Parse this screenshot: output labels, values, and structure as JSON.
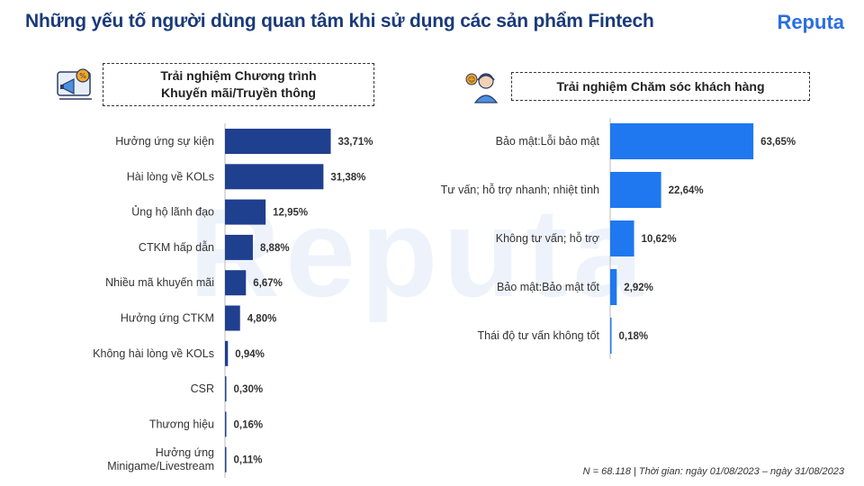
{
  "title": "Những yếu tố người dùng quan tâm khi sử dụng các sản phẩm Fintech",
  "brand": "Reputa",
  "watermark": "Reputa",
  "footer": "N = 68.118 | Thời gian: ngày 01/08/2023 – ngày 31/08/2023",
  "colors": {
    "left_bar": "#1f3f8f",
    "right_bar": "#1f78f0",
    "title": "#1a3a7a",
    "brand": "#2b6fe0"
  },
  "icons": {
    "left": "promotion-megaphone-icon",
    "right": "customer-support-agent-icon",
    "brand": "reputa-logo-icon"
  },
  "chart_data": [
    {
      "type": "bar",
      "orientation": "horizontal",
      "title_lines": [
        "Trải nghiệm Chương trình",
        "Khuyến mãi/Truyền thông"
      ],
      "categories": [
        [
          "Hưởng ứng sự kiện"
        ],
        [
          "Hài lòng về KOLs"
        ],
        [
          "Ủng hộ lãnh đạo"
        ],
        [
          "CTKM hấp dẫn"
        ],
        [
          "Nhiều mã khuyến mãi"
        ],
        [
          "Hưởng ứng CTKM"
        ],
        [
          "Không hài lòng về KOLs"
        ],
        [
          "CSR"
        ],
        [
          "Thương hiệu"
        ],
        [
          "Hưởng ứng",
          "Minigame/Livestream"
        ]
      ],
      "values": [
        33.71,
        31.38,
        12.95,
        8.88,
        6.67,
        4.8,
        0.94,
        0.3,
        0.16,
        0.11
      ],
      "value_labels": [
        "33,71%",
        "31,38%",
        "12,95%",
        "8,88%",
        "6,67%",
        "4,80%",
        "0,94%",
        "0,30%",
        "0,16%",
        "0,11%"
      ],
      "xlim": [
        0,
        35
      ]
    },
    {
      "type": "bar",
      "orientation": "horizontal",
      "title_lines": [
        "Trải nghiệm Chăm sóc khách hàng"
      ],
      "categories": [
        [
          "Bảo mật:Lỗi bảo mật"
        ],
        [
          "Tư vấn; hỗ trợ nhanh; nhiệt tình"
        ],
        [
          "Không tư vấn; hỗ trợ"
        ],
        [
          "Bảo mật:Bảo mật tốt"
        ],
        [
          "Thái độ tư vấn không tốt"
        ]
      ],
      "values": [
        63.65,
        22.64,
        10.62,
        2.92,
        0.18
      ],
      "value_labels": [
        "63,65%",
        "22,64%",
        "10,62%",
        "2,92%",
        "0,18%"
      ],
      "xlim": [
        0,
        66
      ]
    }
  ]
}
